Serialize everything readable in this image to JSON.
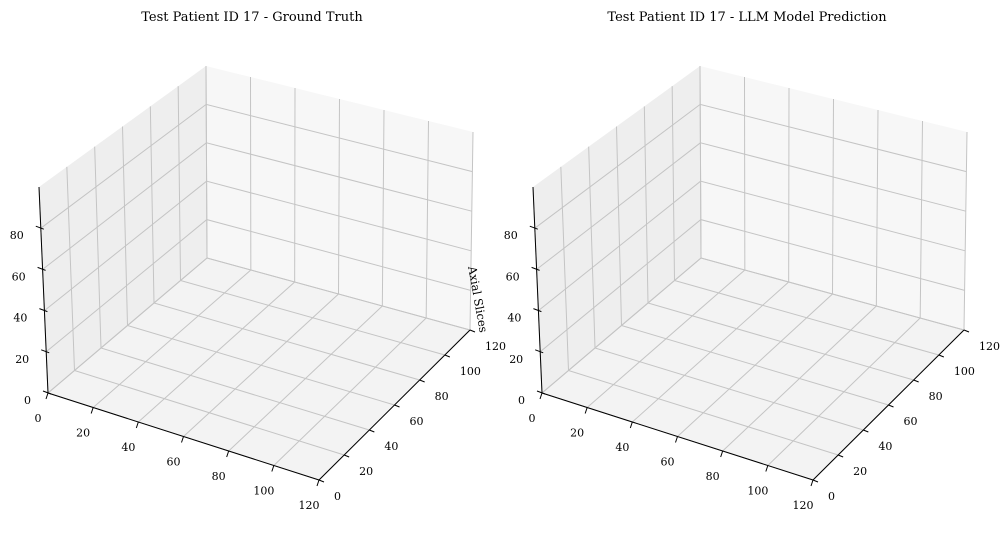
{
  "chart_data": [
    {
      "type": "scatter3d",
      "title": "Test Patient ID 17 - Ground Truth",
      "xlabel": "",
      "ylabel": "",
      "zlabel": "Axial Slices",
      "xlim": [
        0,
        120
      ],
      "ylim": [
        0,
        120
      ],
      "zlim": [
        0,
        100
      ],
      "xticks": [
        "0",
        "20",
        "40",
        "60",
        "80",
        "100",
        "120"
      ],
      "yticks": [
        "0",
        "20",
        "40",
        "60",
        "80",
        "100",
        "120"
      ],
      "zticks": [
        "0",
        "20",
        "40",
        "60",
        "80"
      ],
      "grid": true,
      "series": []
    },
    {
      "type": "scatter3d",
      "title": "Test Patient ID 17 - LLM Model Prediction",
      "xlabel": "",
      "ylabel": "",
      "zlabel": "",
      "xlim": [
        0,
        120
      ],
      "ylim": [
        0,
        120
      ],
      "zlim": [
        0,
        100
      ],
      "xticks": [
        "0",
        "20",
        "40",
        "60",
        "80",
        "100",
        "120"
      ],
      "yticks": [
        "0",
        "20",
        "40",
        "60",
        "80",
        "100",
        "120"
      ],
      "zticks": [
        "0",
        "20",
        "40",
        "60",
        "80"
      ],
      "grid": true,
      "series": []
    }
  ],
  "colors": {
    "pane_left": "#eeeeee",
    "pane_back": "#f7f7f7",
    "pane_floor": "#f3f3f3",
    "grid": "#c4c4c4",
    "axis": "#000000"
  }
}
